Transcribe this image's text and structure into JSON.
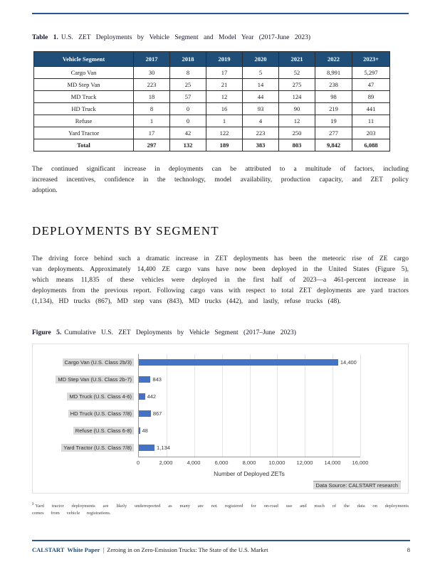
{
  "colors": {
    "rule_blue": "#2f5496",
    "table_header_bg": "#1f4e79",
    "bar_blue": "#4472c4",
    "footer_blue": "#1f4e79",
    "label_chip_bg": "#d9d9d9"
  },
  "table_caption": {
    "label": "Table 1.",
    "text": "U.S. ZET Deployments by Vehicle Segment and Model Year (2017-June 2023)"
  },
  "table": {
    "headers": [
      "Vehicle Segment",
      "2017",
      "2018",
      "2019",
      "2020",
      "2021",
      "2022",
      "2023+"
    ],
    "rows": [
      [
        "Cargo Van",
        "30",
        "8",
        "17",
        "5",
        "52",
        "8,991",
        "5,297"
      ],
      [
        "MD Step Van",
        "223",
        "25",
        "21",
        "14",
        "275",
        "238",
        "47"
      ],
      [
        "MD Truck",
        "18",
        "57",
        "12",
        "44",
        "124",
        "98",
        "89"
      ],
      [
        "HD Truck",
        "8",
        "0",
        "16",
        "93",
        "90",
        "219",
        "441"
      ],
      [
        "Refuse",
        "1",
        "0",
        "1",
        "4",
        "12",
        "19",
        "11"
      ],
      [
        "Yard Tractor",
        "17",
        "42",
        "122",
        "223",
        "250",
        "277",
        "203"
      ],
      [
        "Total",
        "297",
        "132",
        "189",
        "383",
        "803",
        "9,842",
        "6,088"
      ]
    ]
  },
  "paragraphs": {
    "after_table": "The continued significant increase in deployments can be attributed to a multitude of factors, including increased incentives, confidence in the technology, model availability, production capacity, and ZET policy adoption.",
    "segment_intro": "The driving force behind such a dramatic increase in ZET deployments has been the meteoric rise of ZE cargo van deployments. Approximately 14,400 ZE cargo vans have now been deployed in the United States (Figure 5), which means 11,835 of these vehicles were deployed in the first half of 2023—a 461-percent increase in deployments from the previous report. Following cargo vans with respect to total ZET deployments are yard tractors (1,134), HD trucks (867), MD step vans (843), MD trucks (442), and lastly, refuse trucks (48)."
  },
  "section_heading": "DEPLOYMENTS BY SEGMENT",
  "figure_caption": {
    "label": "Figure 5.",
    "text": "Cumulative U.S. ZET Deployments by Vehicle Segment (2017–June 2023)"
  },
  "chart_data": {
    "type": "bar",
    "orientation": "horizontal",
    "title": "",
    "categories": [
      "Cargo Van (U.S. Class 2b/3)",
      "MD Step Van (U.S. Class 2b-7)",
      "MD Truck (U.S. Class 4-6)",
      "HD Truck (U.S. Class 7/8)",
      "Refuse (U.S. Class 6-8)",
      "Yard Tractor (U.S. Class 7/8)"
    ],
    "values": [
      14400,
      843,
      442,
      867,
      48,
      1134
    ],
    "value_labels": [
      "14,400",
      "843",
      "442",
      "867",
      "48",
      "1,134"
    ],
    "xlabel": "Number of Deployed ZETs",
    "xlim": [
      0,
      16000
    ],
    "xticks": [
      "0",
      "2,000",
      "4,000",
      "6,000",
      "8,000",
      "10,000",
      "12,000",
      "14,000",
      "16,000"
    ],
    "grid": "vertical",
    "legend": "none",
    "data_source": "Data Source: CALSTART research",
    "bar_color": "#4472c4"
  },
  "footnote": {
    "marker": "9",
    "text": "Yard tractor deployments are likely underreported as many are not registered for on-road use and much of the data on deployments comes from vehicle registrations."
  },
  "footer": {
    "brand": "CALSTART",
    "doc_type": "White Paper",
    "separator": "|",
    "title": "Zeroing in on Zero-Emission Trucks: The State of the U.S. Market",
    "page_number": "8"
  }
}
